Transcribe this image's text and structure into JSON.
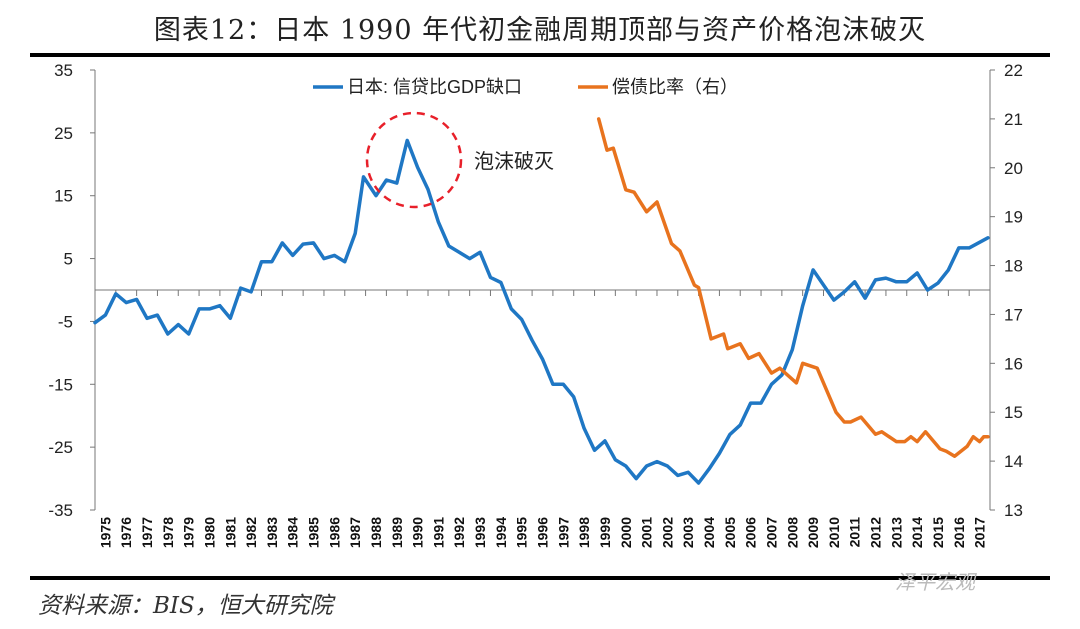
{
  "header": {
    "title": "图表12：日本 1990 年代初金融周期顶部与资产价格泡沫破灭"
  },
  "footer": {
    "source": "资料来源：BIS，恒大研究院",
    "watermark": "泽平宏观"
  },
  "chart_data": {
    "type": "line",
    "title": "图表12：日本 1990 年代初金融周期顶部与资产价格泡沫破灭",
    "legend_position": "top",
    "annotation": {
      "text": "泡沫破灭",
      "marker": "red dashed circle around 1990 peak",
      "color": "#e8202a"
    },
    "x_tick_labels": [
      "1975",
      "1976",
      "1977",
      "1978",
      "1979",
      "1980",
      "1981",
      "1982",
      "1983",
      "1984",
      "1985",
      "1986",
      "1987",
      "1988",
      "1989",
      "1990",
      "1991",
      "1992",
      "1993",
      "1994",
      "1995",
      "1996",
      "1997",
      "1998",
      "1999",
      "2000",
      "2001",
      "2002",
      "2003",
      "2004",
      "2005",
      "2006",
      "2007",
      "2008",
      "2009",
      "2010",
      "2011",
      "2012",
      "2013",
      "2014",
      "2015",
      "2016",
      "2017"
    ],
    "xlim": [
      1975,
      2018
    ],
    "y_left": {
      "lim": [
        -35,
        35
      ],
      "ticks": [
        35,
        25,
        15,
        5,
        -5,
        -15,
        -25,
        -35
      ]
    },
    "y_right": {
      "lim": [
        13,
        22
      ],
      "ticks": [
        22,
        21,
        20,
        19,
        18,
        17,
        16,
        15,
        14,
        13
      ]
    },
    "grid": false,
    "series": [
      {
        "name": "日本: 信贷比GDP缺口",
        "axis": "left",
        "color": "#1f77c4",
        "points": [
          [
            1975.0,
            -5.2
          ],
          [
            1975.5,
            -4
          ],
          [
            1976.0,
            -0.6
          ],
          [
            1976.5,
            -2
          ],
          [
            1977.0,
            -1.5
          ],
          [
            1977.5,
            -4.5
          ],
          [
            1978.0,
            -4
          ],
          [
            1978.5,
            -7
          ],
          [
            1979.0,
            -5.5
          ],
          [
            1979.5,
            -7
          ],
          [
            1980.0,
            -3
          ],
          [
            1980.5,
            -3
          ],
          [
            1981.0,
            -2.5
          ],
          [
            1981.5,
            -4.5
          ],
          [
            1982.0,
            0.3
          ],
          [
            1982.5,
            -0.3
          ],
          [
            1983.0,
            4.5
          ],
          [
            1983.5,
            4.5
          ],
          [
            1984.0,
            7.5
          ],
          [
            1984.5,
            5.5
          ],
          [
            1985.0,
            7.3
          ],
          [
            1985.5,
            7.5
          ],
          [
            1986.0,
            5
          ],
          [
            1986.5,
            5.5
          ],
          [
            1987.0,
            4.5
          ],
          [
            1987.5,
            9
          ],
          [
            1987.9,
            18
          ],
          [
            1988.5,
            15
          ],
          [
            1989.0,
            17.5
          ],
          [
            1989.5,
            17
          ],
          [
            1990.0,
            23.8
          ],
          [
            1990.5,
            19.5
          ],
          [
            1991.0,
            16
          ],
          [
            1991.5,
            10.8
          ],
          [
            1992.0,
            7
          ],
          [
            1992.5,
            6
          ],
          [
            1993.0,
            5
          ],
          [
            1993.5,
            6
          ],
          [
            1994.0,
            2
          ],
          [
            1994.5,
            1.2
          ],
          [
            1995.0,
            -3
          ],
          [
            1995.5,
            -4.7
          ],
          [
            1996.0,
            -8
          ],
          [
            1996.5,
            -11
          ],
          [
            1997.0,
            -15
          ],
          [
            1997.5,
            -15
          ],
          [
            1998.0,
            -17
          ],
          [
            1998.5,
            -22
          ],
          [
            1999.0,
            -25.5
          ],
          [
            1999.5,
            -24
          ],
          [
            2000.0,
            -27
          ],
          [
            2000.5,
            -28
          ],
          [
            2001.0,
            -30
          ],
          [
            2001.5,
            -28
          ],
          [
            2002.0,
            -27.3
          ],
          [
            2002.5,
            -28
          ],
          [
            2003.0,
            -29.5
          ],
          [
            2003.5,
            -29
          ],
          [
            2004.0,
            -30.7
          ],
          [
            2004.5,
            -28.5
          ],
          [
            2005.0,
            -26
          ],
          [
            2005.5,
            -23
          ],
          [
            2006.0,
            -21.5
          ],
          [
            2006.5,
            -18
          ],
          [
            2007.0,
            -18
          ],
          [
            2007.5,
            -15
          ],
          [
            2008.0,
            -13.5
          ],
          [
            2008.5,
            -9.5
          ],
          [
            2009.0,
            -2.5
          ],
          [
            2009.5,
            3.2
          ],
          [
            2010.0,
            0.8
          ],
          [
            2010.5,
            -1.6
          ],
          [
            2011.0,
            -0.3
          ],
          [
            2011.5,
            1.3
          ],
          [
            2012.0,
            -1.3
          ],
          [
            2012.5,
            1.6
          ],
          [
            2013.0,
            1.9
          ],
          [
            2013.5,
            1.3
          ],
          [
            2014.0,
            1.3
          ],
          [
            2014.5,
            2.7
          ],
          [
            2015.0,
            0
          ],
          [
            2015.5,
            1.1
          ],
          [
            2016.0,
            3.2
          ],
          [
            2016.5,
            6.7
          ],
          [
            2017.0,
            6.7
          ],
          [
            2017.9,
            8.3
          ]
        ]
      },
      {
        "name": "偿债比率（右）",
        "axis": "right",
        "color": "#e8731e",
        "points": [
          [
            1999.2,
            21.0
          ],
          [
            1999.6,
            20.36
          ],
          [
            1999.9,
            20.4
          ],
          [
            2000.5,
            19.55
          ],
          [
            2000.9,
            19.5
          ],
          [
            2001.5,
            19.1
          ],
          [
            2002.0,
            19.3
          ],
          [
            2002.7,
            18.45
          ],
          [
            2003.1,
            18.3
          ],
          [
            2003.8,
            17.6
          ],
          [
            2004.0,
            17.55
          ],
          [
            2004.6,
            16.5
          ],
          [
            2005.2,
            16.6
          ],
          [
            2005.4,
            16.3
          ],
          [
            2006.0,
            16.4
          ],
          [
            2006.4,
            16.1
          ],
          [
            2006.9,
            16.2
          ],
          [
            2007.5,
            15.8
          ],
          [
            2007.9,
            15.9
          ],
          [
            2008.7,
            15.6
          ],
          [
            2009.0,
            16.0
          ],
          [
            2009.7,
            15.9
          ],
          [
            2010.6,
            15.0
          ],
          [
            2011.0,
            14.8
          ],
          [
            2011.3,
            14.8
          ],
          [
            2011.8,
            14.9
          ],
          [
            2012.5,
            14.55
          ],
          [
            2012.8,
            14.6
          ],
          [
            2013.5,
            14.4
          ],
          [
            2013.9,
            14.4
          ],
          [
            2014.2,
            14.5
          ],
          [
            2014.5,
            14.4
          ],
          [
            2014.9,
            14.6
          ],
          [
            2015.6,
            14.25
          ],
          [
            2015.9,
            14.2
          ],
          [
            2016.3,
            14.1
          ],
          [
            2016.9,
            14.3
          ],
          [
            2017.2,
            14.5
          ],
          [
            2017.5,
            14.4
          ],
          [
            2017.7,
            14.5
          ],
          [
            2017.9,
            14.5
          ]
        ]
      }
    ]
  }
}
